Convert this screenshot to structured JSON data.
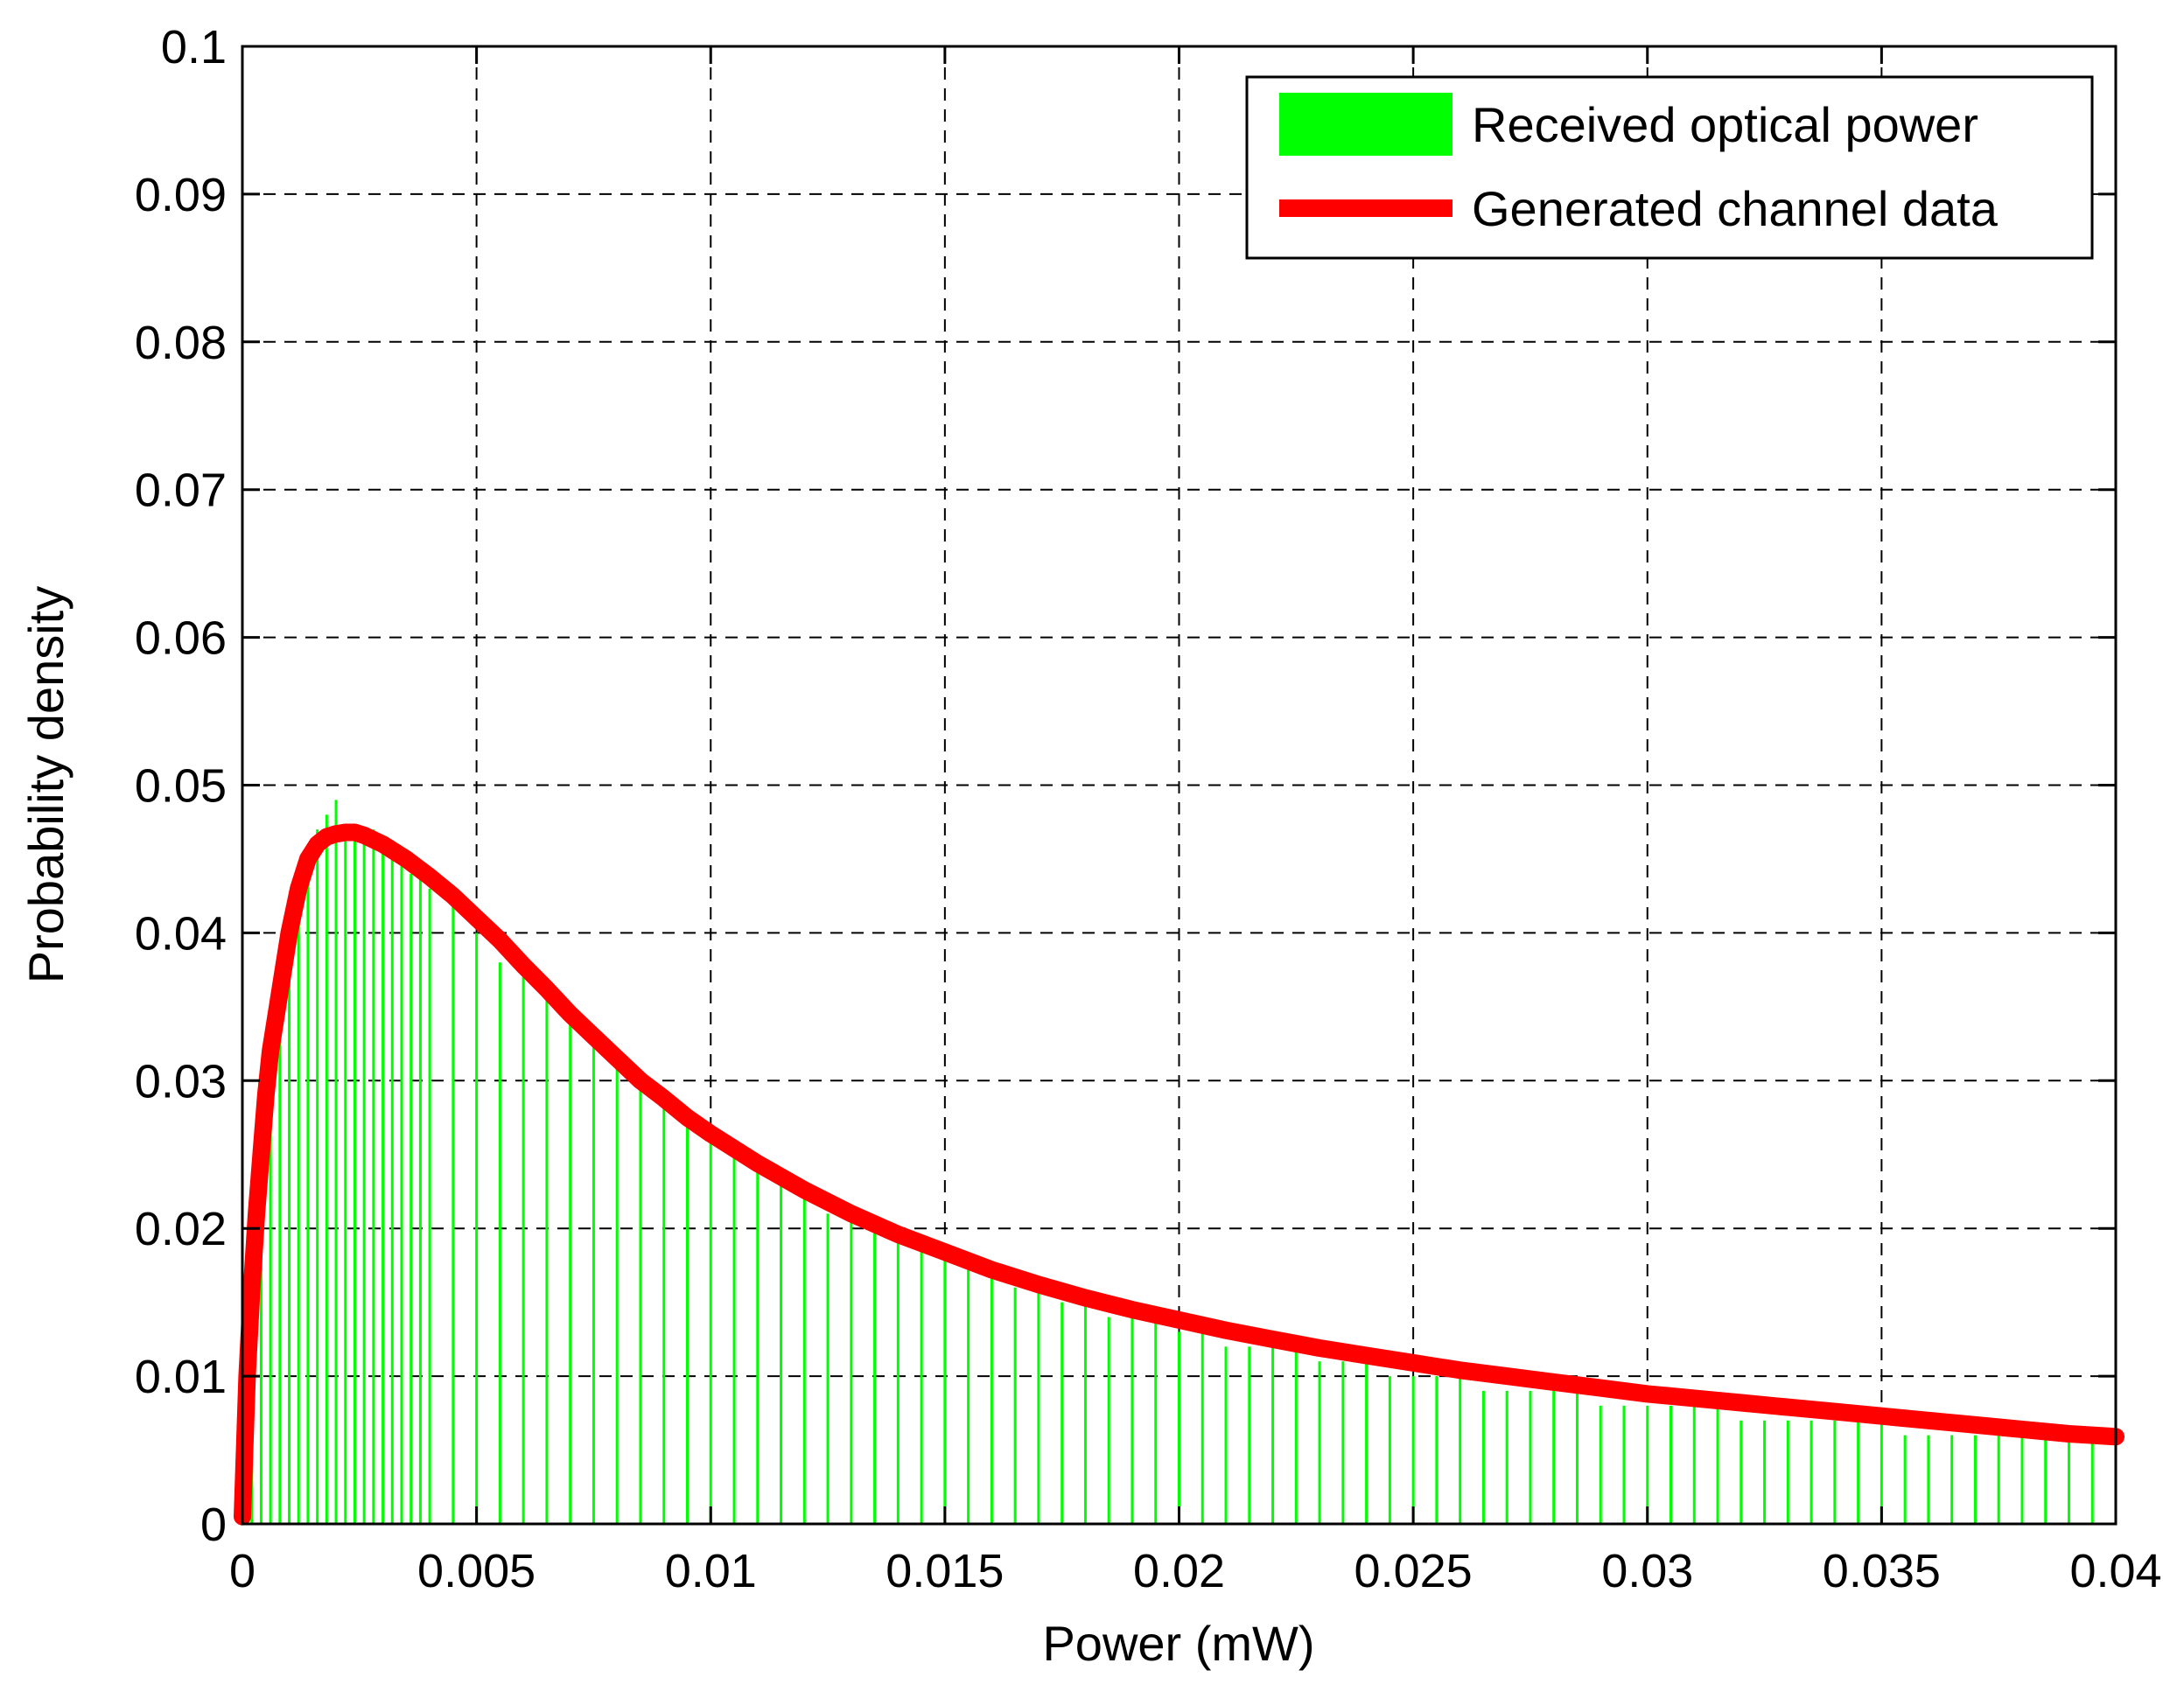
{
  "chart_data": {
    "type": "bar",
    "title": "",
    "xlabel": "Power (mW)",
    "ylabel": "Probability density",
    "xlim": [
      0,
      0.04
    ],
    "ylim": [
      0,
      0.1
    ],
    "grid": true,
    "grid_style": "dashed",
    "legend_position": "top-right",
    "x_ticks": [
      "0",
      "0.005",
      "0.01",
      "0.015",
      "0.02",
      "0.025",
      "0.03",
      "0.035",
      "0.04"
    ],
    "y_ticks": [
      "0",
      "0.01",
      "0.02",
      "0.03",
      "0.04",
      "0.05",
      "0.06",
      "0.07",
      "0.08",
      "0.09",
      "0.1"
    ],
    "series": [
      {
        "name": "Received optical power",
        "kind": "histogram",
        "color": "#00ff00",
        "x": [
          0.0,
          0.0002,
          0.0004,
          0.0006,
          0.0008,
          0.001,
          0.0012,
          0.0014,
          0.0016,
          0.0018,
          0.002,
          0.0022,
          0.0024,
          0.0026,
          0.0028,
          0.003,
          0.0032,
          0.0034,
          0.0036,
          0.0038,
          0.004,
          0.0045,
          0.005,
          0.0055,
          0.006,
          0.0065,
          0.007,
          0.0075,
          0.008,
          0.0085,
          0.009,
          0.0095,
          0.01,
          0.0105,
          0.011,
          0.0115,
          0.012,
          0.0125,
          0.013,
          0.0135,
          0.014,
          0.0145,
          0.015,
          0.0155,
          0.016,
          0.0165,
          0.017,
          0.0175,
          0.018,
          0.0185,
          0.019,
          0.0195,
          0.02,
          0.0205,
          0.021,
          0.0215,
          0.022,
          0.0225,
          0.023,
          0.0235,
          0.024,
          0.0245,
          0.025,
          0.0255,
          0.026,
          0.0265,
          0.027,
          0.0275,
          0.028,
          0.0285,
          0.029,
          0.0295,
          0.03,
          0.0305,
          0.031,
          0.0315,
          0.032,
          0.0325,
          0.033,
          0.0335,
          0.034,
          0.0345,
          0.035,
          0.0355,
          0.036,
          0.0365,
          0.037,
          0.0375,
          0.038,
          0.0385,
          0.039,
          0.0395,
          0.04
        ],
        "values": [
          0.012,
          0.018,
          0.025,
          0.031,
          0.036,
          0.04,
          0.043,
          0.045,
          0.047,
          0.048,
          0.049,
          0.047,
          0.047,
          0.046,
          0.047,
          0.046,
          0.045,
          0.045,
          0.044,
          0.044,
          0.043,
          0.042,
          0.04,
          0.038,
          0.037,
          0.036,
          0.034,
          0.033,
          0.031,
          0.03,
          0.029,
          0.028,
          0.026,
          0.025,
          0.024,
          0.023,
          0.022,
          0.021,
          0.021,
          0.02,
          0.019,
          0.019,
          0.018,
          0.018,
          0.017,
          0.016,
          0.016,
          0.015,
          0.015,
          0.014,
          0.014,
          0.014,
          0.013,
          0.013,
          0.012,
          0.012,
          0.012,
          0.012,
          0.011,
          0.011,
          0.011,
          0.01,
          0.01,
          0.01,
          0.01,
          0.009,
          0.009,
          0.009,
          0.009,
          0.009,
          0.008,
          0.008,
          0.008,
          0.008,
          0.008,
          0.008,
          0.007,
          0.007,
          0.007,
          0.007,
          0.007,
          0.007,
          0.007,
          0.006,
          0.006,
          0.006,
          0.006,
          0.006,
          0.006,
          0.006,
          0.006,
          0.006,
          0.006
        ]
      },
      {
        "name": "Generated channel data",
        "kind": "line",
        "color": "#ff0000",
        "x": [
          0.0,
          0.0001,
          0.0002,
          0.0003,
          0.0004,
          0.0005,
          0.0006,
          0.0008,
          0.001,
          0.0012,
          0.0014,
          0.0016,
          0.0018,
          0.002,
          0.0022,
          0.0024,
          0.0026,
          0.0028,
          0.003,
          0.0035,
          0.004,
          0.0045,
          0.005,
          0.0055,
          0.006,
          0.0065,
          0.007,
          0.0075,
          0.008,
          0.0085,
          0.009,
          0.0095,
          0.01,
          0.011,
          0.012,
          0.013,
          0.014,
          0.015,
          0.016,
          0.017,
          0.018,
          0.019,
          0.02,
          0.021,
          0.022,
          0.023,
          0.024,
          0.025,
          0.026,
          0.027,
          0.028,
          0.029,
          0.03,
          0.031,
          0.032,
          0.033,
          0.034,
          0.035,
          0.036,
          0.037,
          0.038,
          0.039,
          0.04
        ],
        "values": [
          0.0005,
          0.01,
          0.016,
          0.021,
          0.025,
          0.029,
          0.032,
          0.036,
          0.04,
          0.043,
          0.045,
          0.046,
          0.0465,
          0.0467,
          0.0468,
          0.0468,
          0.0466,
          0.0463,
          0.046,
          0.045,
          0.0438,
          0.0425,
          0.041,
          0.0395,
          0.0378,
          0.0362,
          0.0345,
          0.033,
          0.0315,
          0.03,
          0.0288,
          0.0275,
          0.0264,
          0.0244,
          0.0226,
          0.021,
          0.0196,
          0.0184,
          0.0172,
          0.0162,
          0.0153,
          0.0145,
          0.0138,
          0.0131,
          0.0125,
          0.0119,
          0.0114,
          0.0109,
          0.0104,
          0.01,
          0.0096,
          0.0092,
          0.0088,
          0.0085,
          0.0082,
          0.0079,
          0.0076,
          0.0073,
          0.007,
          0.0067,
          0.0064,
          0.0061,
          0.0059
        ]
      }
    ]
  }
}
